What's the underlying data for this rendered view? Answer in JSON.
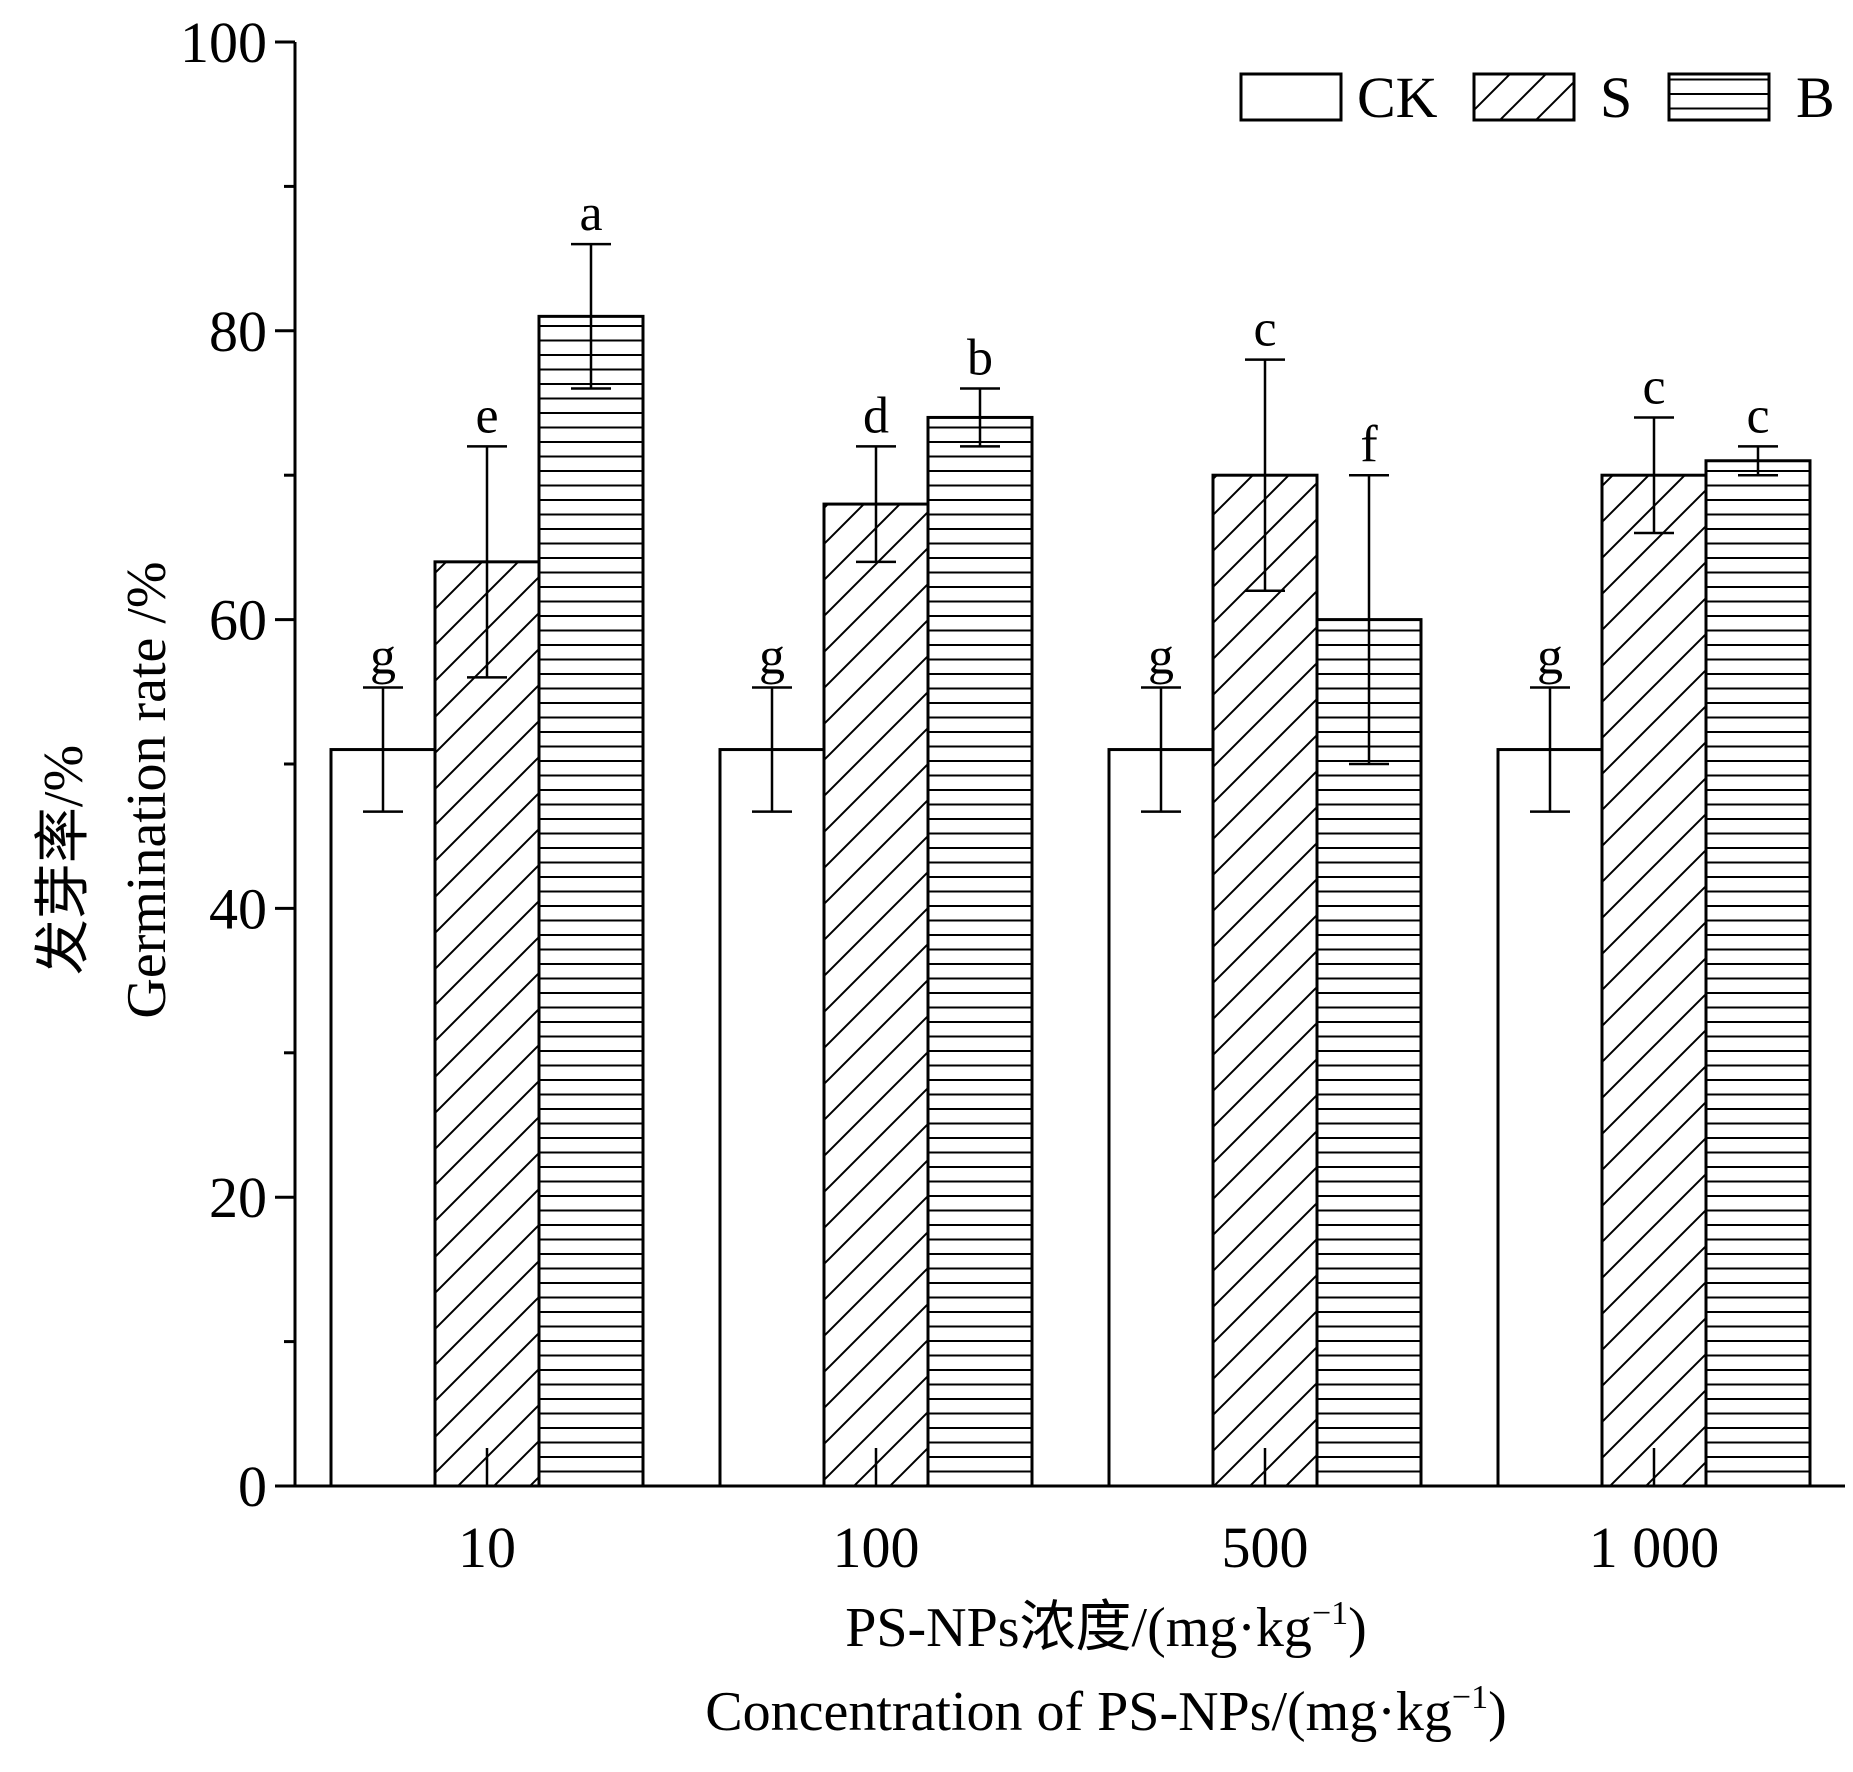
{
  "chart_data": {
    "type": "bar",
    "categories": [
      "10",
      "100",
      "500",
      "1 000"
    ],
    "series": [
      {
        "name": "CK",
        "pattern": "none",
        "values": [
          51,
          51,
          51,
          51
        ],
        "errors": [
          4.3,
          4.3,
          4.3,
          4.3
        ],
        "letters": [
          "g",
          "g",
          "g",
          "g"
        ]
      },
      {
        "name": "S",
        "pattern": "diagonal",
        "values": [
          64,
          68,
          70,
          70
        ],
        "errors": [
          8,
          4,
          8,
          4
        ],
        "letters": [
          "e",
          "d",
          "c",
          "c"
        ]
      },
      {
        "name": "B",
        "pattern": "horizontal",
        "values": [
          81,
          74,
          60,
          71
        ],
        "errors": [
          5,
          2,
          10,
          1
        ],
        "letters": [
          "a",
          "b",
          "f",
          "c"
        ]
      }
    ],
    "ylim": [
      0,
      100
    ],
    "yticks": [
      0,
      20,
      40,
      60,
      80,
      100
    ],
    "ylabel_cn": "发芽率/%",
    "ylabel_en": "Germination rate /%",
    "xlabel_cn": "PS-NPs浓度/(mg·kg",
    "xlabel_en": "Concentration of PS-NPs/(mg·kg",
    "xlabel_exp": "−1",
    "xlabel_close": ")",
    "legend_position": "top-right",
    "grid": false
  }
}
